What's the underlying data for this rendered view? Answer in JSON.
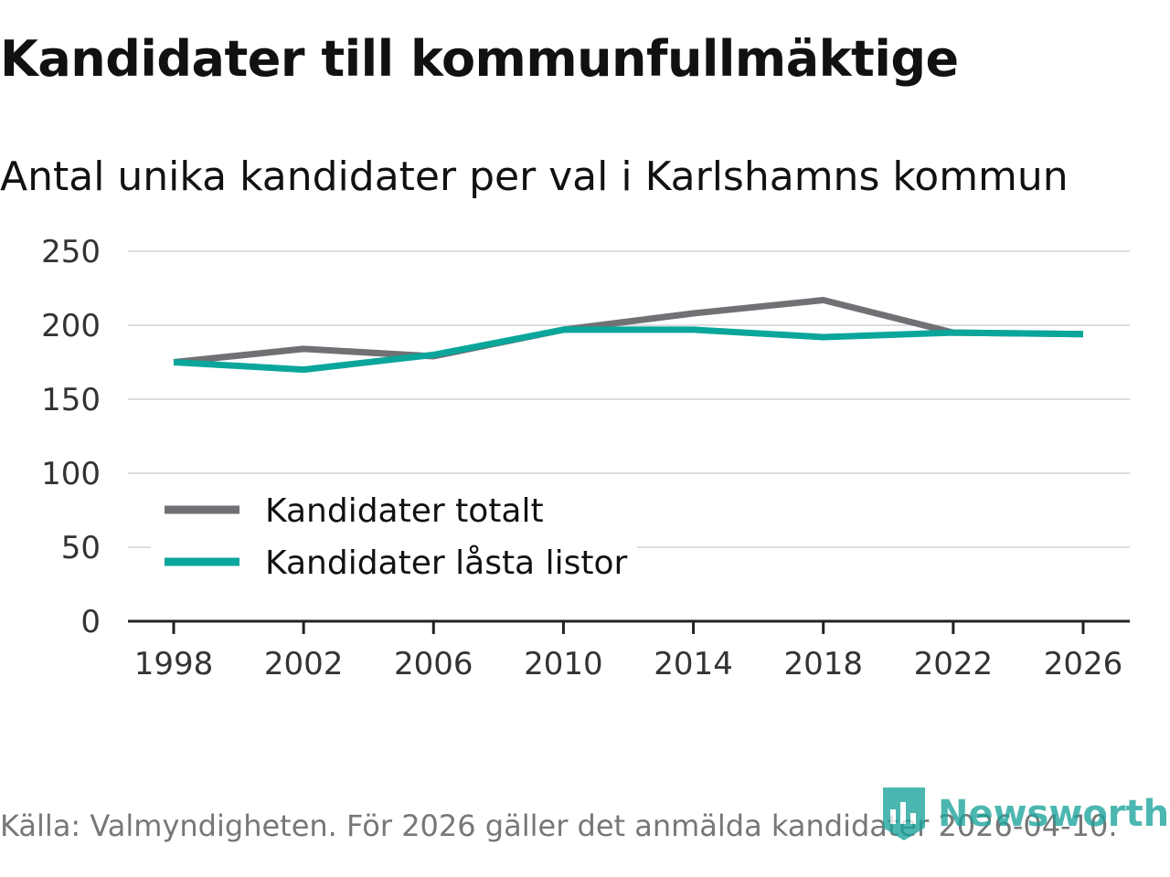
{
  "header": {
    "title": "Kandidater till kommunfullmäktige",
    "subtitle": "Antal unika kandidater per val i Karlshamns kommun"
  },
  "footer": {
    "source": "Källa: Valmyndigheten. För 2026 gäller det anmälda kandidater 2026-04-10.",
    "brand": "Newsworthy"
  },
  "colors": {
    "series_total": "#707075",
    "series_locked": "#0aa69b",
    "grid": "#dddddd",
    "axis": "#222222",
    "brand": "#1aa39a"
  },
  "chart_data": {
    "type": "line",
    "title": "Kandidater till kommunfullmäktige",
    "subtitle": "Antal unika kandidater per val i Karlshamns kommun",
    "xlabel": "",
    "ylabel": "",
    "x": [
      1998,
      2002,
      2006,
      2010,
      2014,
      2018,
      2022,
      2026
    ],
    "x_tick_labels": [
      "1998",
      "2002",
      "2006",
      "2010",
      "2014",
      "2018",
      "2022",
      "2026"
    ],
    "y_ticks": [
      0,
      50,
      100,
      150,
      200,
      250
    ],
    "y_tick_labels": [
      "0",
      "50",
      "100",
      "150",
      "200",
      "250"
    ],
    "ylim": [
      0,
      250
    ],
    "grid": true,
    "legend_position": "bottom-left",
    "series": [
      {
        "name": "Kandidater totalt",
        "color": "#707075",
        "values": [
          175,
          184,
          179,
          197,
          208,
          217,
          195,
          194
        ]
      },
      {
        "name": "Kandidater låsta listor",
        "color": "#0aa69b",
        "values": [
          175,
          170,
          180,
          197,
          197,
          192,
          195,
          194
        ]
      }
    ]
  }
}
